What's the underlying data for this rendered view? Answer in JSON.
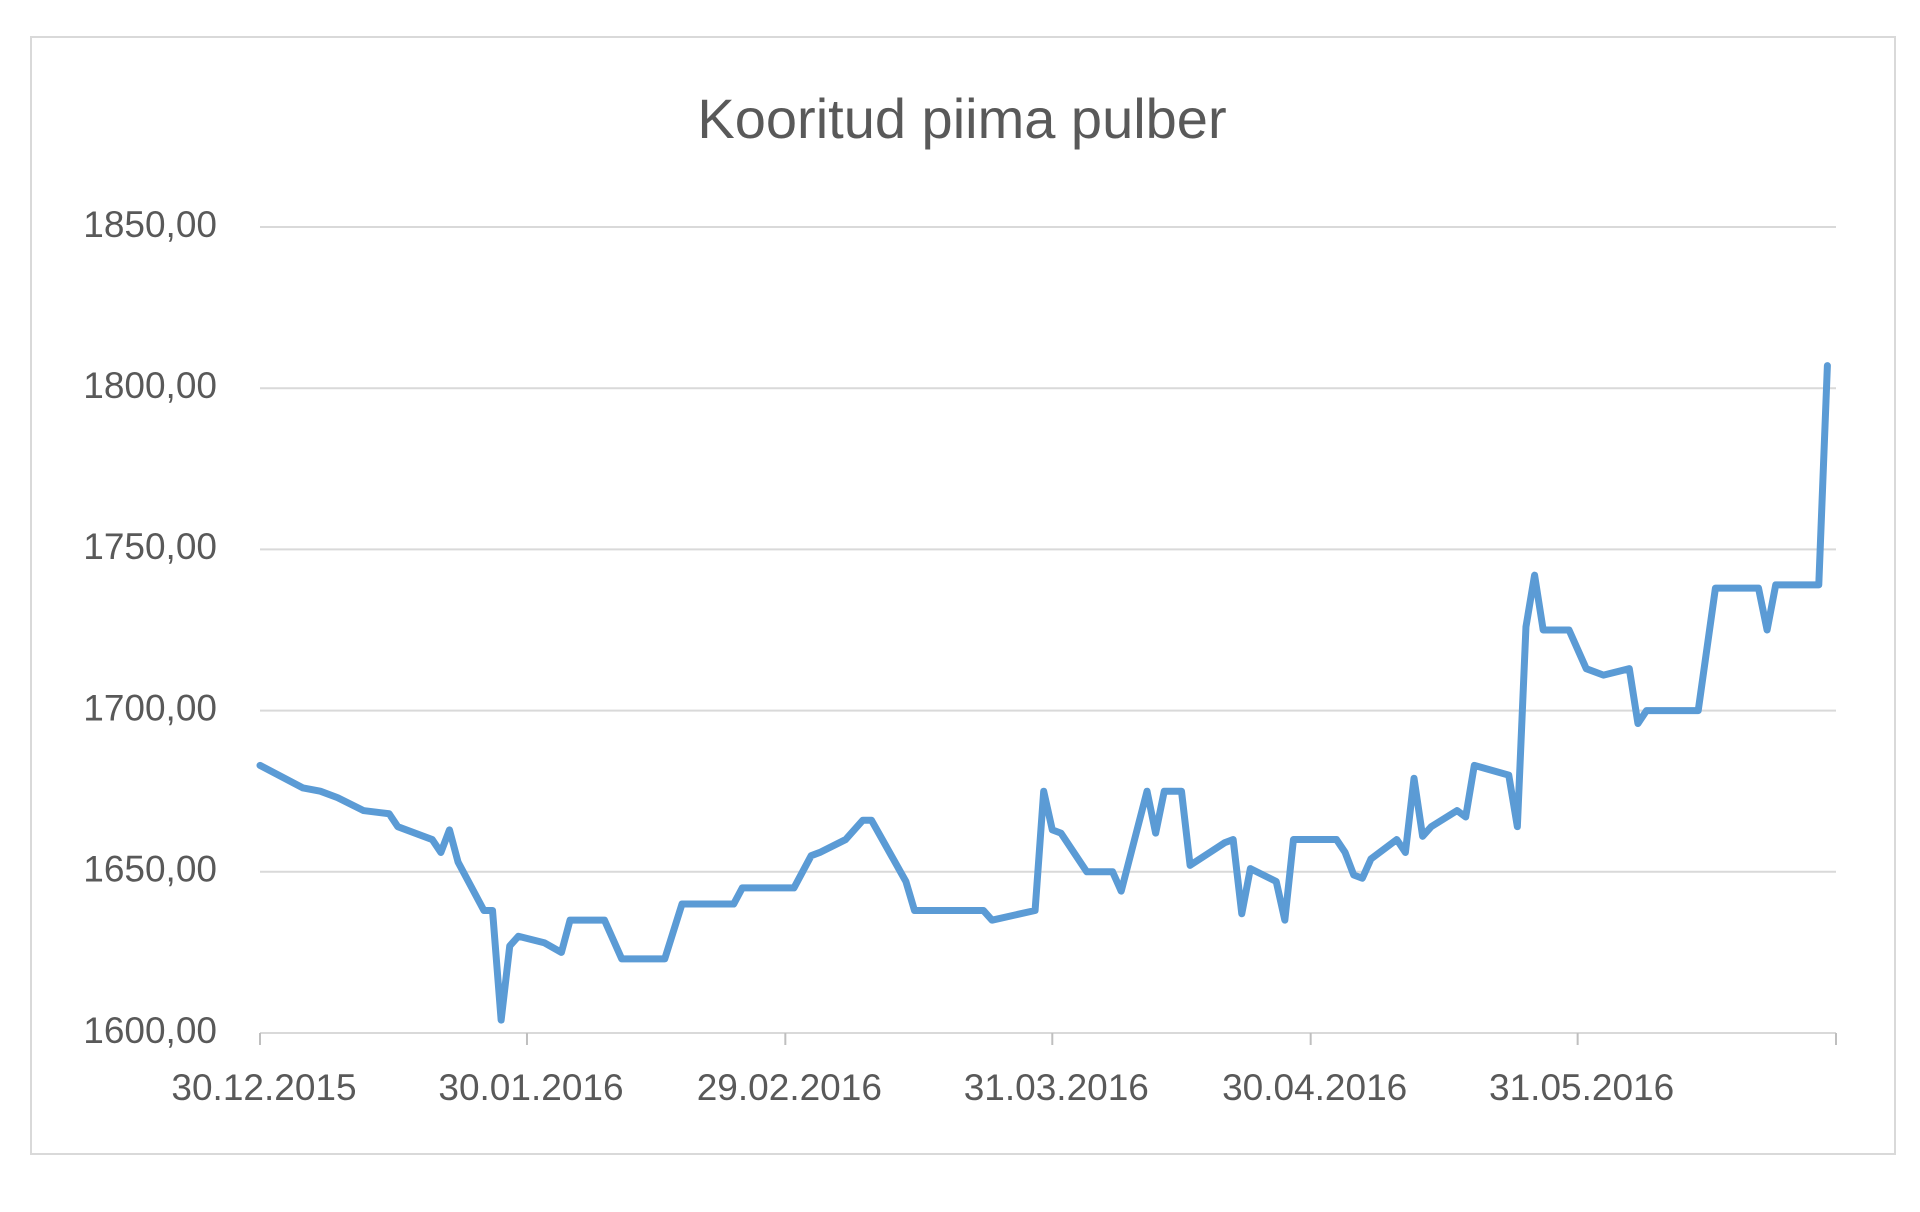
{
  "chart_data": {
    "type": "line",
    "title": "Kooritud piima pulber",
    "x": [
      "2015-12-30",
      "2016-01-04",
      "2016-01-06",
      "2016-01-08",
      "2016-01-11",
      "2016-01-14",
      "2016-01-15",
      "2016-01-19",
      "2016-01-20",
      "2016-01-21",
      "2016-01-22",
      "2016-01-25",
      "2016-01-26",
      "2016-01-27",
      "2016-01-28",
      "2016-01-29",
      "2016-02-01",
      "2016-02-03",
      "2016-02-04",
      "2016-02-08",
      "2016-02-10",
      "2016-02-15",
      "2016-02-17",
      "2016-02-23",
      "2016-02-24",
      "2016-03-01",
      "2016-03-03",
      "2016-03-04",
      "2016-03-07",
      "2016-03-09",
      "2016-03-10",
      "2016-03-14",
      "2016-03-15",
      "2016-03-23",
      "2016-03-24",
      "2016-03-29",
      "2016-03-30",
      "2016-03-31",
      "2016-04-01",
      "2016-04-04",
      "2016-04-07",
      "2016-04-08",
      "2016-04-11",
      "2016-04-12",
      "2016-04-13",
      "2016-04-15",
      "2016-04-16",
      "2016-04-20",
      "2016-04-21",
      "2016-04-22",
      "2016-04-23",
      "2016-04-26",
      "2016-04-27",
      "2016-04-28",
      "2016-05-03",
      "2016-05-04",
      "2016-05-05",
      "2016-05-06",
      "2016-05-07",
      "2016-05-10",
      "2016-05-11",
      "2016-05-12",
      "2016-05-13",
      "2016-05-14",
      "2016-05-17",
      "2016-05-18",
      "2016-05-19",
      "2016-05-23",
      "2016-05-24",
      "2016-05-25",
      "2016-05-26",
      "2016-05-27",
      "2016-05-30",
      "2016-06-01",
      "2016-06-03",
      "2016-06-06",
      "2016-06-07",
      "2016-06-08",
      "2016-06-14",
      "2016-06-16",
      "2016-06-21",
      "2016-06-22",
      "2016-06-23",
      "2016-06-28",
      "2016-06-29"
    ],
    "series": [
      {
        "color": "#5b9bd5",
        "values": [
          1683,
          1676,
          1675,
          1673,
          1669,
          1668,
          1664,
          1660,
          1656,
          1663,
          1653,
          1638,
          1638,
          1604,
          1627,
          1630,
          1628,
          1625,
          1635,
          1635,
          1623,
          1623,
          1640,
          1640,
          1645,
          1645,
          1655,
          1656,
          1660,
          1666,
          1666,
          1647,
          1638,
          1638,
          1635,
          1638,
          1675,
          1663,
          1662,
          1650,
          1650,
          1644,
          1675,
          1662,
          1675,
          1675,
          1652,
          1659,
          1660,
          1637,
          1651,
          1647,
          1635,
          1660,
          1660,
          1656,
          1649,
          1648,
          1654,
          1660,
          1656,
          1679,
          1661,
          1664,
          1669,
          1667,
          1683,
          1680,
          1664,
          1726,
          1742,
          1725,
          1725,
          1713,
          1711,
          1713,
          1696,
          1700,
          1700,
          1738,
          1738,
          1725,
          1739,
          1739,
          1807
        ]
      }
    ],
    "xlim": [
      "2015-12-30",
      "2016-06-30"
    ],
    "xticks": [
      {
        "value": "2015-12-30",
        "label": "30.12.2015"
      },
      {
        "value": "2016-01-30",
        "label": "30.01.2016"
      },
      {
        "value": "2016-02-29",
        "label": "29.02.2016"
      },
      {
        "value": "2016-03-31",
        "label": "31.03.2016"
      },
      {
        "value": "2016-04-30",
        "label": "30.04.2016"
      },
      {
        "value": "2016-05-31",
        "label": "31.05.2016"
      }
    ],
    "ylim": [
      1600,
      1850
    ],
    "yticks": [
      {
        "value": 1600,
        "label": "1600,00"
      },
      {
        "value": 1650,
        "label": "1650,00"
      },
      {
        "value": 1700,
        "label": "1700,00"
      },
      {
        "value": 1750,
        "label": "1750,00"
      },
      {
        "value": 1800,
        "label": "1800,00"
      },
      {
        "value": 1850,
        "label": "1850,00"
      }
    ],
    "grid": true
  }
}
